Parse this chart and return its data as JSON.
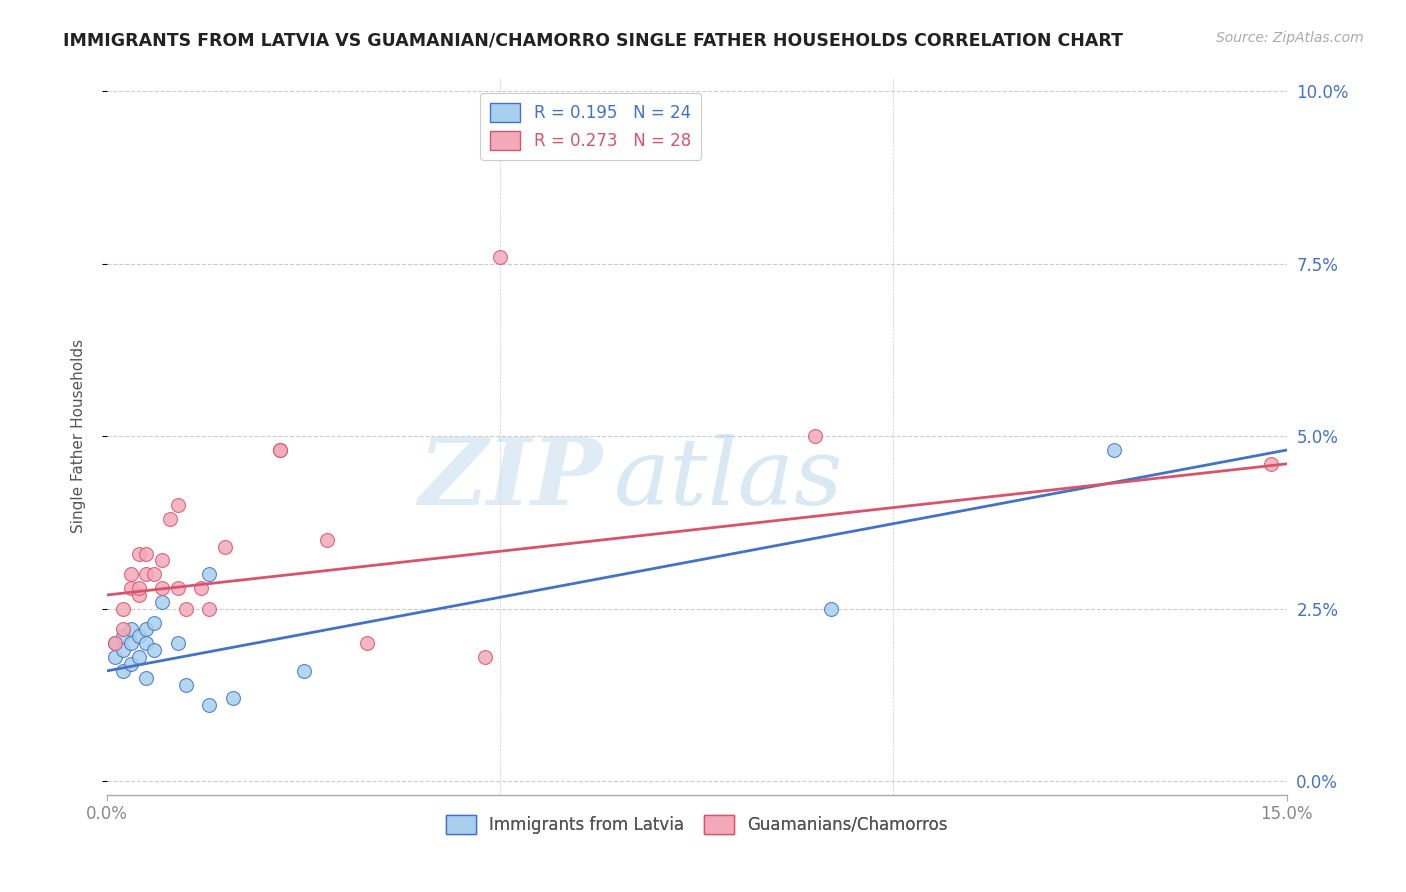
{
  "title": "IMMIGRANTS FROM LATVIA VS GUAMANIAN/CHAMORRO SINGLE FATHER HOUSEHOLDS CORRELATION CHART",
  "source": "Source: ZipAtlas.com",
  "ylabel": "Single Father Households",
  "legend_label1": "R = 0.195   N = 24",
  "legend_label2": "R = 0.273   N = 28",
  "legend_series1": "Immigrants from Latvia",
  "legend_series2": "Guamanians/Chamorros",
  "color1": "#A8CFED",
  "color2": "#F2AABB",
  "line_color1": "#4472C4",
  "line_color2": "#D9536A",
  "xlim": [
    0.0,
    0.15
  ],
  "ylim": [
    -0.002,
    0.102
  ],
  "x_tick_positions": [
    0.0,
    0.15
  ],
  "x_tick_labels": [
    "0.0%",
    "15.0%"
  ],
  "y_tick_positions": [
    0.0,
    0.025,
    0.05,
    0.075,
    0.1
  ],
  "y_tick_labels": [
    "0.0%",
    "2.5%",
    "5.0%",
    "7.5%",
    "10.0%"
  ],
  "scatter1_x": [
    0.001,
    0.001,
    0.002,
    0.002,
    0.002,
    0.003,
    0.003,
    0.003,
    0.004,
    0.004,
    0.005,
    0.005,
    0.005,
    0.006,
    0.006,
    0.007,
    0.009,
    0.01,
    0.013,
    0.016,
    0.013,
    0.025,
    0.092,
    0.128
  ],
  "scatter1_y": [
    0.02,
    0.018,
    0.021,
    0.019,
    0.016,
    0.022,
    0.02,
    0.017,
    0.021,
    0.018,
    0.022,
    0.02,
    0.015,
    0.023,
    0.019,
    0.026,
    0.02,
    0.014,
    0.011,
    0.012,
    0.03,
    0.016,
    0.025,
    0.048
  ],
  "scatter2_x": [
    0.001,
    0.002,
    0.002,
    0.003,
    0.003,
    0.004,
    0.004,
    0.004,
    0.005,
    0.005,
    0.006,
    0.007,
    0.007,
    0.008,
    0.009,
    0.009,
    0.01,
    0.012,
    0.013,
    0.015,
    0.022,
    0.022,
    0.028,
    0.033,
    0.048,
    0.05,
    0.09,
    0.148
  ],
  "scatter2_y": [
    0.02,
    0.025,
    0.022,
    0.028,
    0.03,
    0.027,
    0.033,
    0.028,
    0.033,
    0.03,
    0.03,
    0.032,
    0.028,
    0.038,
    0.04,
    0.028,
    0.025,
    0.028,
    0.025,
    0.034,
    0.048,
    0.048,
    0.035,
    0.02,
    0.018,
    0.076,
    0.05,
    0.046
  ],
  "watermark_zip": "ZIP",
  "watermark_atlas": "atlas",
  "background_color": "#FFFFFF",
  "grid_color": "#CCCCCC",
  "title_color": "#222222",
  "marker_size": 100,
  "regression_line1_x0": 0.0,
  "regression_line1_y0": 0.016,
  "regression_line1_x1": 0.15,
  "regression_line1_y1": 0.048,
  "regression_line2_x0": 0.0,
  "regression_line2_y0": 0.027,
  "regression_line2_x1": 0.15,
  "regression_line2_y1": 0.046
}
